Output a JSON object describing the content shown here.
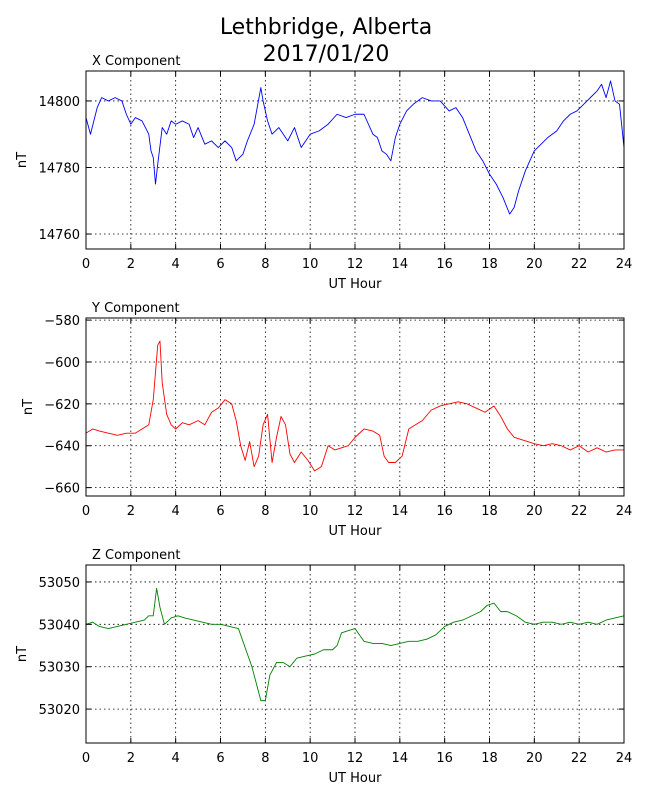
{
  "title_line1": "Lethbridge, Alberta",
  "title_line2": "2017/01/20",
  "chart_data": [
    {
      "type": "line",
      "panel_title": "X Component",
      "xlabel": "UT Hour",
      "ylabel": "nT",
      "xlim": [
        0,
        24
      ],
      "ylim": [
        14755.5,
        14809
      ],
      "xticks": [
        0,
        2,
        4,
        6,
        8,
        10,
        12,
        14,
        16,
        18,
        20,
        22,
        24
      ],
      "yticks": [
        14760,
        14780,
        14800
      ],
      "grid": true,
      "color": "#0000ff",
      "series": [
        {
          "x": [
            0,
            0.2,
            0.5,
            0.7,
            1.0,
            1.3,
            1.6,
            1.8,
            2.0,
            2.2,
            2.5,
            2.8,
            2.9,
            3.0,
            3.1,
            3.2,
            3.4,
            3.6,
            3.8,
            4.0,
            4.3,
            4.6,
            4.8,
            5.0,
            5.3,
            5.6,
            5.9,
            6.2,
            6.5,
            6.7,
            7.0,
            7.2,
            7.5,
            7.8,
            7.9,
            8.1,
            8.3,
            8.6,
            9.0,
            9.3,
            9.6,
            10.0,
            10.4,
            10.8,
            11.2,
            11.6,
            12.0,
            12.4,
            12.8,
            13.0,
            13.2,
            13.4,
            13.6,
            13.8,
            14.0,
            14.3,
            14.6,
            15.0,
            15.4,
            15.8,
            16.2,
            16.5,
            16.8,
            17.1,
            17.4,
            17.7,
            18.0,
            18.3,
            18.6,
            18.9,
            19.1,
            19.3,
            19.6,
            20.0,
            20.3,
            20.6,
            21.0,
            21.3,
            21.6,
            21.9,
            22.2,
            22.5,
            22.8,
            23.0,
            23.2,
            23.4,
            23.6,
            23.8,
            24.0
          ],
          "y": [
            14795,
            14790,
            14798,
            14801,
            14800,
            14801,
            14800,
            14796,
            14793,
            14795,
            14794,
            14790,
            14785,
            14783,
            14775,
            14781,
            14792,
            14790,
            14794,
            14793,
            14794,
            14793,
            14789,
            14792,
            14787,
            14788,
            14786,
            14788,
            14786,
            14782,
            14784,
            14788,
            14793,
            14804,
            14800,
            14794,
            14790,
            14792,
            14788,
            14792,
            14786,
            14790,
            14791,
            14793,
            14796,
            14795,
            14796,
            14796,
            14790,
            14789,
            14785,
            14784,
            14782,
            14789,
            14793,
            14797,
            14799,
            14801,
            14800,
            14800,
            14797,
            14798,
            14795,
            14790,
            14785,
            14782,
            14778,
            14775,
            14771,
            14766,
            14768,
            14773,
            14779,
            14785,
            14787,
            14789,
            14791,
            14794,
            14796,
            14797,
            14799,
            14801,
            14803,
            14805,
            14801,
            14806,
            14800,
            14799,
            14786
          ]
        }
      ]
    },
    {
      "type": "line",
      "panel_title": "Y Component",
      "xlabel": "UT Hour",
      "ylabel": "nT",
      "xlim": [
        0,
        24
      ],
      "ylim": [
        -664,
        -579
      ],
      "xticks": [
        0,
        2,
        4,
        6,
        8,
        10,
        12,
        14,
        16,
        18,
        20,
        22,
        24
      ],
      "yticks": [
        -580,
        -600,
        -620,
        -640,
        -660
      ],
      "grid": true,
      "color": "#ff0000",
      "series": [
        {
          "x": [
            0,
            0.3,
            0.6,
            1.0,
            1.4,
            1.8,
            2.2,
            2.5,
            2.8,
            3.0,
            3.1,
            3.2,
            3.3,
            3.4,
            3.6,
            3.8,
            4.0,
            4.3,
            4.6,
            5.0,
            5.3,
            5.6,
            5.9,
            6.2,
            6.5,
            6.7,
            6.9,
            7.1,
            7.3,
            7.5,
            7.7,
            7.9,
            8.1,
            8.3,
            8.5,
            8.7,
            8.9,
            9.1,
            9.3,
            9.6,
            9.9,
            10.2,
            10.5,
            10.8,
            11.1,
            11.4,
            11.7,
            12.0,
            12.4,
            12.8,
            13.1,
            13.3,
            13.5,
            13.8,
            14.1,
            14.4,
            14.7,
            15.0,
            15.4,
            15.8,
            16.2,
            16.6,
            17.0,
            17.4,
            17.8,
            18.2,
            18.5,
            18.8,
            19.1,
            19.4,
            19.7,
            20.0,
            20.4,
            20.8,
            21.2,
            21.6,
            22.0,
            22.4,
            22.8,
            23.2,
            23.6,
            24.0
          ],
          "y": [
            -634,
            -632,
            -633,
            -634,
            -635,
            -634,
            -634,
            -632,
            -630,
            -618,
            -605,
            -592,
            -590,
            -610,
            -625,
            -630,
            -632,
            -629,
            -630,
            -628,
            -630,
            -624,
            -622,
            -618,
            -620,
            -628,
            -640,
            -647,
            -638,
            -650,
            -645,
            -630,
            -625,
            -648,
            -636,
            -626,
            -630,
            -644,
            -648,
            -643,
            -647,
            -652,
            -650,
            -640,
            -642,
            -641,
            -640,
            -636,
            -632,
            -633,
            -635,
            -645,
            -648,
            -648,
            -645,
            -632,
            -630,
            -628,
            -623,
            -621,
            -620,
            -619,
            -620,
            -622,
            -624,
            -621,
            -626,
            -632,
            -636,
            -637,
            -638,
            -639,
            -640,
            -639,
            -640,
            -642,
            -640,
            -643,
            -641,
            -643,
            -642,
            -642
          ]
        }
      ]
    },
    {
      "type": "line",
      "panel_title": "Z Component",
      "xlabel": "UT Hour",
      "ylabel": "nT",
      "xlim": [
        0,
        24
      ],
      "ylim": [
        53012,
        53054
      ],
      "xticks": [
        0,
        2,
        4,
        6,
        8,
        10,
        12,
        14,
        16,
        18,
        20,
        22,
        24
      ],
      "yticks": [
        53020,
        53030,
        53040,
        53050
      ],
      "grid": true,
      "color": "#008000",
      "series": [
        {
          "x": [
            0,
            0.3,
            0.6,
            1.0,
            1.4,
            1.8,
            2.2,
            2.6,
            2.8,
            3.0,
            3.15,
            3.3,
            3.5,
            3.8,
            4.1,
            4.4,
            4.8,
            5.2,
            5.6,
            6.0,
            6.4,
            6.8,
            7.0,
            7.2,
            7.4,
            7.6,
            7.8,
            8.0,
            8.2,
            8.5,
            8.8,
            9.1,
            9.4,
            9.8,
            10.2,
            10.6,
            11.0,
            11.2,
            11.4,
            11.7,
            12.0,
            12.4,
            12.8,
            13.2,
            13.6,
            14.0,
            14.4,
            14.8,
            15.2,
            15.6,
            16.0,
            16.4,
            16.8,
            17.2,
            17.6,
            17.9,
            18.2,
            18.5,
            18.8,
            19.2,
            19.6,
            20.0,
            20.4,
            20.8,
            21.2,
            21.6,
            22.0,
            22.4,
            22.8,
            23.2,
            23.6,
            24.0
          ],
          "y": [
            53040,
            53040.5,
            53039.5,
            53039,
            53039.5,
            53040,
            53040.5,
            53041,
            53042,
            53042,
            53048.5,
            53044,
            53040,
            53041.5,
            53042,
            53041.5,
            53041,
            53040.5,
            53040,
            53040,
            53039.5,
            53039,
            53036,
            53033,
            53030,
            53026,
            53022,
            53022,
            53028,
            53031,
            53031,
            53030,
            53032,
            53032.5,
            53033,
            53034,
            53034,
            53035,
            53038,
            53038.5,
            53039,
            53036,
            53035.5,
            53035.5,
            53035,
            53035.5,
            53036,
            53036,
            53036.5,
            53037.5,
            53039.5,
            53040.5,
            53041,
            53042,
            53043,
            53044.5,
            53045,
            53043,
            53043,
            53042,
            53040.5,
            53040,
            53040.5,
            53040.5,
            53040,
            53040.5,
            53040,
            53040.5,
            53040,
            53041,
            53041.5,
            53042
          ]
        }
      ]
    }
  ]
}
